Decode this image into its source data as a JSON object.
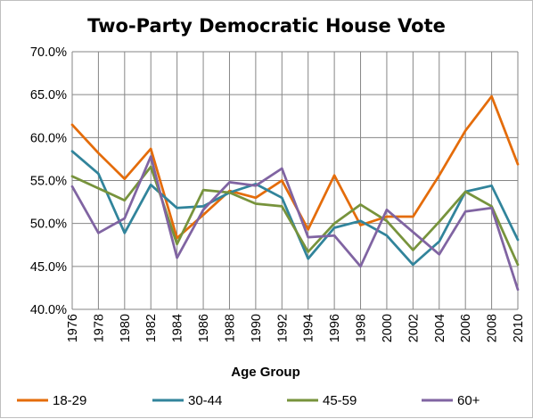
{
  "chart_data": {
    "type": "line",
    "title": "Two-Party Democratic House Vote",
    "xlabel": "Age Group",
    "ylabel": "",
    "x": [
      "1976",
      "1978",
      "1980",
      "1982",
      "1984",
      "1986",
      "1988",
      "1990",
      "1992",
      "1994",
      "1996",
      "1998",
      "2000",
      "2002",
      "2004",
      "2006",
      "2008",
      "2010"
    ],
    "ylim": [
      40,
      70
    ],
    "ytick_step": 5,
    "ytick_labels": [
      "40.0%",
      "45.0%",
      "50.0%",
      "55.0%",
      "60.0%",
      "65.0%",
      "70.0%"
    ],
    "grid": true,
    "legend_position": "bottom",
    "series": [
      {
        "name": "18-29",
        "color": "#e46c0a",
        "values": [
          61.5,
          58.2,
          55.2,
          58.7,
          48.3,
          51.0,
          53.8,
          53.0,
          55.0,
          49.3,
          55.6,
          49.8,
          50.8,
          50.8,
          55.6,
          60.8,
          64.8,
          56.9
        ]
      },
      {
        "name": "30-44",
        "color": "#31849b",
        "values": [
          58.4,
          55.8,
          48.9,
          54.5,
          51.8,
          52.0,
          53.6,
          54.6,
          53.0,
          45.9,
          49.5,
          50.3,
          48.6,
          45.2,
          47.9,
          53.7,
          54.4,
          48.1
        ]
      },
      {
        "name": "45-59",
        "color": "#77933c",
        "values": [
          55.5,
          54.1,
          52.7,
          56.6,
          47.6,
          53.9,
          53.6,
          52.3,
          52.0,
          46.7,
          50.0,
          52.2,
          50.3,
          46.9,
          50.2,
          53.7,
          52.0,
          45.2
        ]
      },
      {
        "name": "60+",
        "color": "#8064a2",
        "values": [
          54.3,
          48.9,
          50.6,
          57.8,
          46.0,
          51.6,
          54.8,
          54.4,
          56.4,
          48.4,
          48.6,
          45.0,
          51.6,
          49.0,
          46.4,
          51.4,
          51.8,
          42.3
        ]
      }
    ]
  }
}
